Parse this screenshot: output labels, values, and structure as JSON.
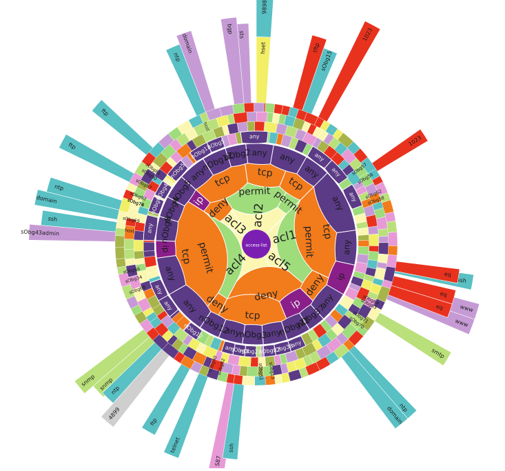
{
  "center": {
    "label": "access-list",
    "color": "#7b1fb3"
  },
  "palette": {
    "purple": "#5b3a86",
    "orange": "#f27b1c",
    "green": "#9fdc7c",
    "cream": "#fbf7b2",
    "red": "#e8321e",
    "lavender": "#c69bd5",
    "teal": "#59c0c4",
    "yellow": "#f2ef67",
    "pink": "#e79ad6",
    "lime": "#b9e07a",
    "olive": "#a6b44a",
    "dark": "#3e2b63",
    "grey": "#cfcfcf",
    "stroke": "#ffffff"
  },
  "rings": {
    "acl": [
      {
        "label": "acl1",
        "color": "#fbf7b2",
        "start": -45,
        "end": 18
      },
      {
        "label": "acl5",
        "color": "#fbf7b2",
        "start": 18,
        "end": 58
      },
      {
        "label": "acl4",
        "color": "#fbf7b2",
        "start": 58,
        "end": 212
      },
      {
        "label": "acl3",
        "color": "#fbf7b2",
        "start": 212,
        "end": 234
      },
      {
        "label": "acl2",
        "color": "#fbf7b2",
        "start": 234,
        "end": 315
      }
    ],
    "action": [
      {
        "label": "permit",
        "color": "#9fdc7c",
        "start": -45,
        "end": 40
      },
      {
        "label": "deny",
        "color": "#f27b1c",
        "start": 40,
        "end": 118
      },
      {
        "label": "permit",
        "color": "#9fdc7c",
        "start": 118,
        "end": 212
      },
      {
        "label": "deny",
        "color": "#f27b1c",
        "start": 212,
        "end": 236
      },
      {
        "label": "permit",
        "color": "#9fdc7c",
        "start": 236,
        "end": 300
      },
      {
        "label": "permit",
        "color": "#9fdc7c",
        "start": 300,
        "end": 315
      }
    ],
    "protocol": [
      {
        "label": "tcp",
        "color": "#f27b1c",
        "start": -45,
        "end": 25
      },
      {
        "label": "deny",
        "color": "#f27b1c",
        "start": 25,
        "end": 45
      },
      {
        "label": "ip",
        "color": "#8b1f8a",
        "start": 45,
        "end": 68
      },
      {
        "label": "tcp",
        "color": "#f27b1c",
        "start": 68,
        "end": 118
      },
      {
        "label": "deny",
        "color": "#f27b1c",
        "start": 118,
        "end": 128
      },
      {
        "label": "tcp",
        "color": "#f27b1c",
        "start": 128,
        "end": 212
      },
      {
        "label": "ip",
        "color": "#8b1f8a",
        "start": 212,
        "end": 222
      },
      {
        "label": "tcp",
        "color": "#f27b1c",
        "start": 222,
        "end": 262
      },
      {
        "label": "tcp",
        "color": "#f27b1c",
        "start": 262,
        "end": 292
      },
      {
        "label": "tcp",
        "color": "#f27b1c",
        "start": 292,
        "end": 315
      }
    ],
    "object": [
      {
        "label": "any",
        "color": "#5b3a86",
        "start": -45,
        "end": -8
      },
      {
        "label": "any",
        "color": "#5b3a86",
        "start": -8,
        "end": 12
      },
      {
        "label": "ip",
        "color": "#8b1f8a",
        "start": 12,
        "end": 30
      },
      {
        "label": "any",
        "color": "#5b3a86",
        "start": 30,
        "end": 48
      },
      {
        "label": "nObg37",
        "color": "#5b3a86",
        "start": 48,
        "end": 58
      },
      {
        "label": "nObg21",
        "color": "#5b3a86",
        "start": 58,
        "end": 72
      },
      {
        "label": "any",
        "color": "#5b3a86",
        "start": 72,
        "end": 86
      },
      {
        "label": "nObg3",
        "color": "#5b3a86",
        "start": 86,
        "end": 98
      },
      {
        "label": "any",
        "color": "#5b3a86",
        "start": 98,
        "end": 112
      },
      {
        "label": "nObg12",
        "color": "#5b3a86",
        "start": 112,
        "end": 124
      },
      {
        "label": "any",
        "color": "#5b3a86",
        "start": 124,
        "end": 150
      },
      {
        "label": "any",
        "color": "#5b3a86",
        "start": 150,
        "end": 172
      },
      {
        "label": "ip",
        "color": "#8b1f8a",
        "start": 172,
        "end": 182
      },
      {
        "label": "nObg8",
        "color": "#5b3a86",
        "start": 182,
        "end": 196
      },
      {
        "label": "nObg4",
        "color": "#5b3a86",
        "start": 196,
        "end": 208
      },
      {
        "label": "nObg5",
        "color": "#5b3a86",
        "start": 208,
        "end": 222
      },
      {
        "label": "any",
        "color": "#5b3a86",
        "start": 222,
        "end": 238
      },
      {
        "label": "nObg12",
        "color": "#5b3a86",
        "start": 238,
        "end": 252
      },
      {
        "label": "nObg2",
        "color": "#5b3a86",
        "start": 252,
        "end": 264
      },
      {
        "label": "any",
        "color": "#5b3a86",
        "start": 264,
        "end": 280
      },
      {
        "label": "any",
        "color": "#5b3a86",
        "start": 280,
        "end": 300
      },
      {
        "label": "any",
        "color": "#5b3a86",
        "start": 300,
        "end": 315
      }
    ],
    "detail": [
      {
        "label": "nObg5",
        "color": "#5b3a86",
        "start": 218,
        "end": 228
      },
      {
        "label": "nObg42",
        "color": "#5b3a86",
        "start": 206,
        "end": 214
      },
      {
        "label": "nObg8",
        "color": "#5b3a86",
        "start": 197,
        "end": 205
      },
      {
        "label": "any",
        "color": "#5b3a86",
        "start": 182,
        "end": 195
      },
      {
        "label": "nObg12",
        "color": "#5b3a86",
        "start": 234,
        "end": 244
      },
      {
        "label": "nObg5",
        "color": "#5b3a86",
        "start": 244,
        "end": 252
      },
      {
        "label": "any",
        "color": "#5b3a86",
        "start": 262,
        "end": 276
      },
      {
        "label": "any",
        "color": "#5b3a86",
        "start": 300,
        "end": 312
      },
      {
        "label": "any",
        "color": "#5b3a86",
        "start": 312,
        "end": 324
      },
      {
        "label": "any",
        "color": "#5b3a86",
        "start": 328,
        "end": 340
      },
      {
        "label": "any",
        "color": "#5b3a86",
        "start": 64,
        "end": 72
      },
      {
        "label": "nObg38",
        "color": "#5b3a86",
        "start": 72,
        "end": 80
      },
      {
        "label": "nObg22",
        "color": "#5b3a86",
        "start": 80,
        "end": 86
      },
      {
        "label": "any",
        "color": "#5b3a86",
        "start": 100,
        "end": 108
      },
      {
        "label": "any",
        "color": "#5b3a86",
        "start": 140,
        "end": 150
      },
      {
        "label": "any",
        "color": "#5b3a86",
        "start": 150,
        "end": 160
      },
      {
        "label": "nObg12",
        "color": "#5b3a86",
        "start": 122,
        "end": 130
      },
      {
        "label": "nObg23",
        "color": "#5b3a86",
        "start": 90,
        "end": 96
      },
      {
        "label": "nObg3",
        "color": "#5b3a86",
        "start": 96,
        "end": 102
      }
    ]
  },
  "spikes": [
    {
      "label": "1023",
      "color": "#e8321e",
      "angle": -62,
      "len": 1.0
    },
    {
      "label": "9898",
      "color": "#59c0c4",
      "angle": -88,
      "len": 1.0
    },
    {
      "label": "ssh",
      "color": "#59c0c4",
      "angle": 10,
      "len": 0.75
    },
    {
      "label": "eq",
      "color": "#e8321e",
      "angle": 9,
      "len": 0.62
    },
    {
      "label": "www",
      "color": "#c69bd5",
      "angle": 17,
      "len": 0.85
    },
    {
      "label": "www",
      "color": "#c69bd5",
      "angle": 21,
      "len": 0.85
    },
    {
      "label": "eq",
      "color": "#e8321e",
      "angle": 15,
      "len": 0.62
    },
    {
      "label": "eq",
      "color": "#e8321e",
      "angle": 19,
      "len": 0.62
    },
    {
      "label": "smtp",
      "color": "#b9e07a",
      "angle": 31,
      "len": 0.78
    },
    {
      "label": "ntp",
      "color": "#59c0c4",
      "angle": 48,
      "len": 0.85
    },
    {
      "label": "domain",
      "color": "#59c0c4",
      "angle": 51,
      "len": 0.85
    },
    {
      "label": "S87",
      "color": "#e79ad6",
      "angle": 100,
      "len": 0.85
    },
    {
      "label": "ssh",
      "color": "#59c0c4",
      "angle": 97,
      "len": 0.72
    },
    {
      "label": "telnet",
      "color": "#59c0c4",
      "angle": 112,
      "len": 0.82
    },
    {
      "label": "ftp",
      "color": "#59c0c4",
      "angle": 120,
      "len": 0.72
    },
    {
      "label": "4899",
      "color": "#cfcfcf",
      "angle": 130,
      "len": 0.86
    },
    {
      "label": "snmp",
      "color": "#b9e07a",
      "angle": 137,
      "len": 0.72
    },
    {
      "label": "snmp",
      "color": "#b9e07a",
      "angle": 141,
      "len": 0.82
    },
    {
      "label": "ntp",
      "color": "#59c0c4",
      "angle": 134,
      "len": 0.7
    },
    {
      "label": "domain",
      "color": "#59c0c4",
      "angle": 192,
      "len": 0.8
    },
    {
      "label": "ntp",
      "color": "#59c0c4",
      "angle": 196,
      "len": 0.72
    },
    {
      "label": "ssh",
      "color": "#59c0c4",
      "angle": 187,
      "len": 0.72
    },
    {
      "label": "sObg43admin",
      "color": "#c69bd5",
      "angle": 183,
      "len": 0.82
    },
    {
      "label": "ftp",
      "color": "#59c0c4",
      "angle": 208,
      "len": 0.75
    },
    {
      "label": "ftp",
      "color": "#59c0c4",
      "angle": 221,
      "len": 0.68
    },
    {
      "label": "ntp",
      "color": "#59c0c4",
      "angle": 247,
      "len": 0.7
    },
    {
      "label": "domain",
      "color": "#c69bd5",
      "angle": 251,
      "len": 0.78
    },
    {
      "label": "sts",
      "color": "#c69bd5",
      "angle": 266,
      "len": 0.76
    },
    {
      "label": "bgp",
      "color": "#c69bd5",
      "angle": 263,
      "len": 0.82
    },
    {
      "label": "hset",
      "color": "#f2ef67",
      "angle": 272,
      "len": 0.64
    },
    {
      "label": "sObg15",
      "color": "#59c0c4",
      "angle": 291,
      "len": 0.64
    },
    {
      "label": "tftp",
      "color": "#e8321e",
      "angle": 287,
      "len": 0.72
    },
    {
      "label": "1023",
      "color": "#e8321e",
      "angle": -33,
      "len": 0.58
    }
  ],
  "outer_labels": [
    {
      "label": "sObg57",
      "angle": -36
    },
    {
      "label": "sObg56",
      "angle": -31
    },
    {
      "label": "sObg62",
      "angle": -23
    },
    {
      "label": "sObg58",
      "angle": -20
    },
    {
      "label": "sObg84",
      "angle": 26
    },
    {
      "label": "sObg83",
      "angle": 28
    },
    {
      "label": "sObg71",
      "angle": 35
    },
    {
      "label": "sObg70",
      "angle": 38
    },
    {
      "label": "sObg13",
      "angle": 83
    },
    {
      "label": "sObg51",
      "angle": 88
    },
    {
      "label": "sObg82",
      "angle": 106
    },
    {
      "label": "sObg40",
      "angle": 110
    },
    {
      "label": "sObg92",
      "angle": 202
    },
    {
      "label": "sObg76",
      "angle": 199
    },
    {
      "label": "sObg87",
      "angle": 208
    },
    {
      "label": "sObg90",
      "angle": 213
    },
    {
      "label": "sObg81",
      "angle": 216
    },
    {
      "label": "sObg68",
      "angle": 159
    },
    {
      "label": "sObg34",
      "angle": 164
    },
    {
      "label": "sObg66",
      "angle": 168
    },
    {
      "label": "sObg69",
      "angle": 191
    },
    {
      "label": "sObg74",
      "angle": 199
    },
    {
      "label": "host",
      "angle": 186
    },
    {
      "label": "host",
      "angle": 247
    }
  ]
}
